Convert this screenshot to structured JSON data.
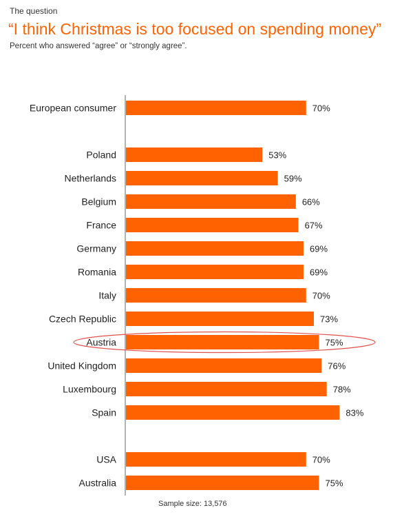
{
  "header": {
    "eyebrow": "The question",
    "title": "“I think Christmas is too focused on spending money”",
    "subtitle": "Percent who answered “agree” or “strongly agree”."
  },
  "footnote": "Sample size: 13,576",
  "colors": {
    "bar": "#ff6200",
    "highlight_ring": "#e0504a",
    "axis": "#666666"
  },
  "highlight": "Austria",
  "chart_data": {
    "type": "bar",
    "orientation": "horizontal",
    "title": "“I think Christmas is too focused on spending money”",
    "xlabel": "",
    "ylabel": "",
    "xlim": [
      0,
      100
    ],
    "categories": [
      "European consumer",
      "Poland",
      "Netherlands",
      "Belgium",
      "France",
      "Germany",
      "Romania",
      "Italy",
      "Czech Republic",
      "Austria",
      "United Kingdom",
      "Luxembourg",
      "Spain",
      "USA",
      "Australia"
    ],
    "values": [
      70,
      53,
      59,
      66,
      67,
      69,
      69,
      70,
      73,
      75,
      76,
      78,
      83,
      70,
      75
    ],
    "value_labels": [
      "70%",
      "53%",
      "59%",
      "66%",
      "67%",
      "69%",
      "69%",
      "70%",
      "73%",
      "75%",
      "76%",
      "78%",
      "83%",
      "70%",
      "75%"
    ],
    "groups": [
      [
        "European consumer"
      ],
      [
        "Poland",
        "Netherlands",
        "Belgium",
        "France",
        "Germany",
        "Romania",
        "Italy",
        "Czech Republic",
        "Austria",
        "United Kingdom",
        "Luxembourg",
        "Spain"
      ],
      [
        "USA",
        "Australia"
      ]
    ]
  }
}
